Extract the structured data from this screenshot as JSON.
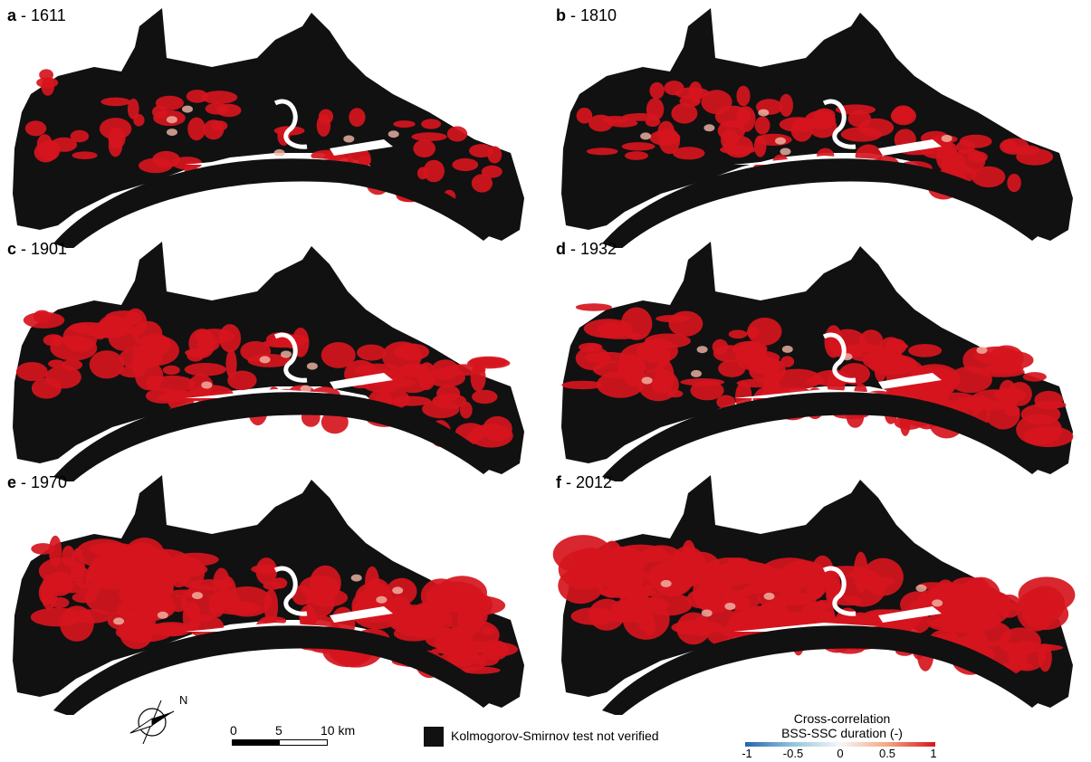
{
  "panels": [
    {
      "letter": "a",
      "sep": " - ",
      "year": "1611"
    },
    {
      "letter": "b",
      "sep": " - ",
      "year": "1810"
    },
    {
      "letter": "c",
      "sep": " - ",
      "year": "1901"
    },
    {
      "letter": "d",
      "sep": " - ",
      "year": "1932"
    },
    {
      "letter": "e",
      "sep": " - ",
      "year": "1970"
    },
    {
      "letter": "f",
      "sep": " - ",
      "year": "2012"
    }
  ],
  "compass": {
    "label": "N"
  },
  "scale_bar": {
    "ticks": [
      "0",
      "5",
      "10 km"
    ]
  },
  "ks_legend": {
    "text": "Kolmogorov-Smirnov test not verified",
    "color": "#111111"
  },
  "colorbar": {
    "title_line1": "Cross-correlation",
    "title_line2": "BSS-SSC duration (-)",
    "ticks": [
      "-1",
      "-0.5",
      "0",
      "0.5",
      "1"
    ],
    "colors": [
      "#2166ac",
      "#92c5de",
      "#f7f7f7",
      "#f4a582",
      "#d6151e"
    ]
  },
  "map_colors": {
    "not_verified": "#111111",
    "positive": "#d6151e",
    "light": "#f2b8a8"
  }
}
